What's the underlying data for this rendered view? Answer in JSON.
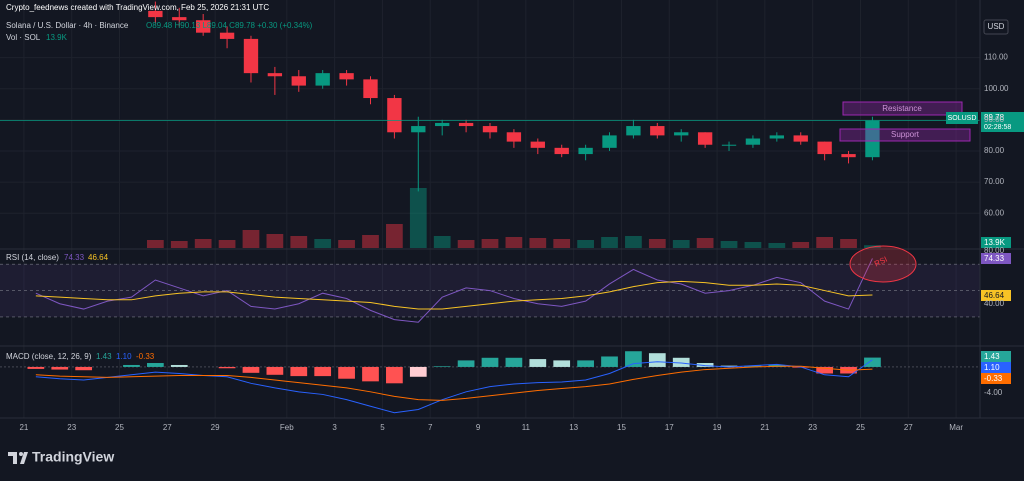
{
  "header": {
    "credit": "Crypto_feednews created with TradingView.com, Feb 25, 2026 21:31 UTC",
    "symbol": "Solana / U.S. Dollar · 4h · Binance",
    "ohlc": "O89.48 H90.13 L89.04 C89.78 +0.30 (+0.34%)",
    "volume_title": "Vol · SOL",
    "volume_value": "13.9K"
  },
  "chart_data": [
    {
      "type": "candlestick",
      "currency": "USD",
      "symbol": "SOLUSD",
      "countdown": "02:28:58",
      "x": [
        "2026-01-26",
        "2026-01-27",
        "2026-01-28",
        "2026-01-29",
        "2026-01-30",
        "2026-01-31",
        "2026-02-01",
        "2026-02-02",
        "2026-02-03",
        "2026-02-04",
        "2026-02-05",
        "2026-02-06",
        "2026-02-07",
        "2026-02-08",
        "2026-02-09",
        "2026-02-10",
        "2026-02-11",
        "2026-02-12",
        "2026-02-13",
        "2026-02-14",
        "2026-02-15",
        "2026-02-16",
        "2026-02-17",
        "2026-02-18",
        "2026-02-19",
        "2026-02-20",
        "2026-02-21",
        "2026-02-22",
        "2026-02-23",
        "2026-02-24",
        "2026-02-25"
      ],
      "open": [
        125,
        123,
        122,
        118,
        116,
        105,
        104,
        101,
        105,
        103,
        97,
        86,
        88,
        89,
        88,
        86,
        83,
        81,
        79,
        81,
        85,
        88,
        85,
        86,
        82,
        82,
        84,
        85,
        83,
        79,
        78
      ],
      "high": [
        128,
        126,
        124,
        120,
        117,
        107,
        106,
        106,
        106,
        104,
        98,
        91,
        90,
        90,
        89,
        87,
        84,
        82,
        82,
        86,
        90,
        89,
        87,
        86,
        83,
        85,
        86,
        86,
        83,
        80,
        91
      ],
      "low": [
        121,
        120,
        117,
        113,
        102,
        98,
        99,
        100,
        101,
        95,
        84,
        67,
        85,
        86,
        84,
        81,
        79,
        78,
        77,
        80,
        84,
        84,
        83,
        81,
        80,
        81,
        83,
        82,
        77,
        76,
        77
      ],
      "close": [
        123,
        122,
        118,
        116,
        105,
        104,
        101,
        105,
        103,
        97,
        86,
        88,
        89,
        88,
        86,
        83,
        81,
        79,
        81,
        85,
        88,
        85,
        86,
        82,
        82,
        84,
        85,
        83,
        79,
        78,
        89.78
      ],
      "volume": [
        40,
        35,
        45,
        40,
        90,
        70,
        60,
        45,
        40,
        65,
        120,
        300,
        60,
        40,
        45,
        55,
        50,
        45,
        40,
        55,
        60,
        45,
        40,
        50,
        35,
        30,
        25,
        30,
        55,
        45,
        13.9
      ],
      "colors": {
        "up": "#089981",
        "down": "#f23645"
      },
      "ylim": [
        48.5,
        128.5
      ],
      "yticks": [
        {
          "value": 60,
          "label": "60.00"
        },
        {
          "value": 70,
          "label": "70.00"
        },
        {
          "value": 80,
          "label": "80.00"
        },
        {
          "value": 90,
          "label": "90.00"
        },
        {
          "value": 100,
          "label": "100.00"
        },
        {
          "value": 110,
          "label": "110.00"
        }
      ],
      "xlim": [
        "2026-01-20",
        "2026-03-02"
      ],
      "xticks": [
        {
          "value": "2026-01-21",
          "label": "21"
        },
        {
          "value": "2026-01-23",
          "label": "23"
        },
        {
          "value": "2026-01-25",
          "label": "25"
        },
        {
          "value": "2026-01-27",
          "label": "27"
        },
        {
          "value": "2026-01-29",
          "label": "29"
        },
        {
          "value": "2026-02-01",
          "label": "Feb"
        },
        {
          "value": "2026-02-03",
          "label": "3"
        },
        {
          "value": "2026-02-05",
          "label": "5"
        },
        {
          "value": "2026-02-07",
          "label": "7"
        },
        {
          "value": "2026-02-09",
          "label": "9"
        },
        {
          "value": "2026-02-11",
          "label": "11"
        },
        {
          "value": "2026-02-13",
          "label": "13"
        },
        {
          "value": "2026-02-15",
          "label": "15"
        },
        {
          "value": "2026-02-17",
          "label": "17"
        },
        {
          "value": "2026-02-19",
          "label": "19"
        },
        {
          "value": "2026-02-21",
          "label": "21"
        },
        {
          "value": "2026-02-23",
          "label": "23"
        },
        {
          "value": "2026-02-25",
          "label": "25"
        },
        {
          "value": "2026-02-27",
          "label": "27"
        },
        {
          "value": "2026-03-01",
          "label": "Mar"
        }
      ],
      "annotations": [
        "Resistance",
        "Support"
      ]
    },
    {
      "type": "line",
      "title": "RSI (14, close)",
      "x": [
        "2026-01-21",
        "2026-01-22",
        "2026-01-23",
        "2026-01-24",
        "2026-01-25",
        "2026-01-26",
        "2026-01-27",
        "2026-01-28",
        "2026-01-29",
        "2026-01-30",
        "2026-01-31",
        "2026-02-01",
        "2026-02-02",
        "2026-02-03",
        "2026-02-04",
        "2026-02-05",
        "2026-02-06",
        "2026-02-07",
        "2026-02-08",
        "2026-02-09",
        "2026-02-10",
        "2026-02-11",
        "2026-02-12",
        "2026-02-13",
        "2026-02-14",
        "2026-02-15",
        "2026-02-16",
        "2026-02-17",
        "2026-02-18",
        "2026-02-19",
        "2026-02-20",
        "2026-02-21",
        "2026-02-22",
        "2026-02-23",
        "2026-02-24",
        "2026-02-25"
      ],
      "series": [
        {
          "color": "#7e57c2",
          "values": [
            48,
            40,
            36,
            42,
            45,
            58,
            52,
            46,
            50,
            38,
            36,
            40,
            48,
            44,
            35,
            28,
            26,
            45,
            52,
            50,
            44,
            40,
            38,
            42,
            55,
            66,
            58,
            55,
            48,
            50,
            54,
            60,
            56,
            42,
            36,
            74.33
          ]
        },
        {
          "color": "#f7c325",
          "values": [
            46,
            45,
            44,
            43,
            43,
            46,
            48,
            49,
            49,
            47,
            45,
            44,
            43,
            42,
            41,
            38,
            36,
            36,
            38,
            40,
            42,
            43,
            44,
            46,
            49,
            53,
            56,
            57,
            56,
            54,
            54,
            55,
            54,
            50,
            46,
            46.64
          ]
        }
      ],
      "legend_values": [
        "74.33",
        "46.64"
      ],
      "levels": [
        70,
        50,
        30
      ],
      "ylim": [
        8,
        81.5
      ],
      "yticks": [
        {
          "value": 40,
          "label": "40.00"
        },
        {
          "value": 80,
          "label": "80.00"
        }
      ],
      "annotation": "RSI"
    },
    {
      "type": "macd",
      "title": "MACD (close, 12, 26, 9)",
      "x": [
        "2026-01-21",
        "2026-01-22",
        "2026-01-23",
        "2026-01-24",
        "2026-01-25",
        "2026-01-26",
        "2026-01-27",
        "2026-01-28",
        "2026-01-29",
        "2026-01-30",
        "2026-01-31",
        "2026-02-01",
        "2026-02-02",
        "2026-02-03",
        "2026-02-04",
        "2026-02-05",
        "2026-02-06",
        "2026-02-07",
        "2026-02-08",
        "2026-02-09",
        "2026-02-10",
        "2026-02-11",
        "2026-02-12",
        "2026-02-13",
        "2026-02-14",
        "2026-02-15",
        "2026-02-16",
        "2026-02-17",
        "2026-02-18",
        "2026-02-19",
        "2026-02-20",
        "2026-02-21",
        "2026-02-22",
        "2026-02-23",
        "2026-02-24",
        "2026-02-25"
      ],
      "histogram": {
        "colors": {
          "up_rising": "#26a69a",
          "up_falling": "#b2dfdb",
          "down_falling": "#ff5252",
          "down_rising": "#ffcdd2"
        },
        "values": [
          -0.3,
          -0.4,
          -0.5,
          0,
          0.3,
          0.6,
          0.3,
          0,
          -0.2,
          -0.9,
          -1.2,
          -1.4,
          -1.4,
          -1.8,
          -2.2,
          -2.5,
          -1.5,
          0.1,
          1,
          1.4,
          1.4,
          1.2,
          1,
          1,
          1.6,
          2.4,
          2.1,
          1.4,
          0.6,
          0.2,
          0.2,
          0.3,
          -0.1,
          -1,
          -1,
          1.43
        ]
      },
      "series": [
        {
          "color": "#2962ff",
          "values": [
            -1.5,
            -1.8,
            -2,
            -1.6,
            -1.2,
            -0.8,
            -1,
            -1.3,
            -1.5,
            -2.5,
            -3.2,
            -3.8,
            -4.2,
            -5,
            -6,
            -7,
            -6.5,
            -5,
            -3.8,
            -3,
            -2.6,
            -2.4,
            -2.3,
            -2,
            -1,
            0.5,
            0.8,
            0.6,
            0.2,
            0,
            0.2,
            0.4,
            0,
            -1.2,
            -1.5,
            1.1
          ]
        },
        {
          "color": "#ff6d00",
          "values": [
            -1.2,
            -1.4,
            -1.5,
            -1.6,
            -1.5,
            -1.4,
            -1.3,
            -1.3,
            -1.3,
            -1.6,
            -2,
            -2.4,
            -2.8,
            -3.2,
            -3.8,
            -4.5,
            -5,
            -5.1,
            -4.8,
            -4.4,
            -4,
            -3.6,
            -3.3,
            -3,
            -2.6,
            -1.9,
            -1.3,
            -0.8,
            -0.4,
            -0.2,
            0,
            0.1,
            0.1,
            -0.2,
            -0.5,
            -0.33
          ]
        }
      ],
      "legend_values": [
        "1.43",
        "1.10",
        "-0.33"
      ],
      "ylim": [
        -7.8,
        3.2
      ],
      "yticks": [
        {
          "value": -4,
          "label": "-4.00"
        }
      ]
    }
  ],
  "footer": {
    "brand": "TradingView"
  }
}
